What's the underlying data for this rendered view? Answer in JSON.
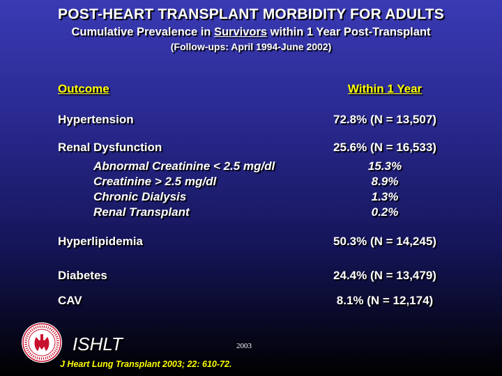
{
  "header": {
    "title": "POST-HEART TRANSPLANT MORBIDITY FOR ADULTS",
    "subtitle_before": "Cumulative Prevalence in ",
    "subtitle_underlined": "Survivors",
    "subtitle_after": " within 1 Year Post-Transplant",
    "followup": "(Follow-ups: April 1994-June 2002)"
  },
  "table": {
    "col_outcome": "Outcome",
    "col_within": "Within 1 Year",
    "rows": [
      {
        "label": "Hypertension",
        "value": "72.8% (N = 13,507)"
      },
      {
        "label": "Renal Dysfunction",
        "value": "25.6% (N = 16,533)"
      },
      {
        "label": "Hyperlipidemia",
        "value": "50.3% (N = 14,245)"
      },
      {
        "label": "Diabetes",
        "value": "24.4% (N = 13,479)"
      },
      {
        "label": "CAV",
        "value": "8.1% (N = 12,174)"
      }
    ],
    "renal_sub": [
      {
        "label": "Abnormal Creatinine < 2.5 mg/dl",
        "value": "15.3%"
      },
      {
        "label": "Creatinine > 2.5 mg/dl",
        "value": "8.9%"
      },
      {
        "label": "Chronic Dialysis",
        "value": "1.3%"
      },
      {
        "label": "Renal Transplant",
        "value": "0.2%"
      }
    ]
  },
  "footer": {
    "org": "ISHLT",
    "year": "2003",
    "citation": "J Heart Lung Transplant 2003; 22: 610-72."
  },
  "colors": {
    "accent": "#ffff00",
    "logo_red": "#c8102e"
  }
}
